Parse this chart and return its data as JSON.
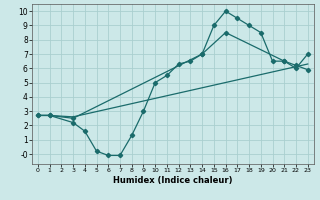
{
  "xlabel": "Humidex (Indice chaleur)",
  "background_color": "#cce8e8",
  "grid_color": "#aacfcf",
  "line_color": "#1a6b6b",
  "xlim": [
    -0.5,
    23.5
  ],
  "ylim": [
    -0.7,
    10.5
  ],
  "xticks": [
    0,
    1,
    2,
    3,
    4,
    5,
    6,
    7,
    8,
    9,
    10,
    11,
    12,
    13,
    14,
    15,
    16,
    17,
    18,
    19,
    20,
    21,
    22,
    23
  ],
  "yticks": [
    0,
    1,
    2,
    3,
    4,
    5,
    6,
    7,
    8,
    9,
    10
  ],
  "ytick_labels": [
    "-0",
    "1",
    "2",
    "3",
    "4",
    "5",
    "6",
    "7",
    "8",
    "9",
    "10"
  ],
  "line1_x": [
    0,
    1,
    3,
    4,
    5,
    6,
    7,
    8,
    9,
    10,
    11,
    12,
    13,
    14,
    15,
    16,
    17,
    18,
    19,
    20,
    21,
    22,
    23
  ],
  "line1_y": [
    2.7,
    2.7,
    2.2,
    1.6,
    0.2,
    -0.1,
    -0.1,
    1.3,
    3.0,
    5.0,
    5.5,
    6.3,
    6.5,
    7.0,
    9.0,
    10.0,
    9.5,
    9.0,
    8.5,
    6.5,
    6.5,
    6.2,
    5.9
  ],
  "line2_x": [
    0,
    1,
    3,
    14,
    16,
    21,
    22,
    23
  ],
  "line2_y": [
    2.7,
    2.7,
    2.5,
    7.0,
    8.5,
    6.5,
    6.0,
    7.0
  ],
  "line3_x": [
    0,
    1,
    3,
    23
  ],
  "line3_y": [
    2.7,
    2.7,
    2.6,
    6.3
  ]
}
